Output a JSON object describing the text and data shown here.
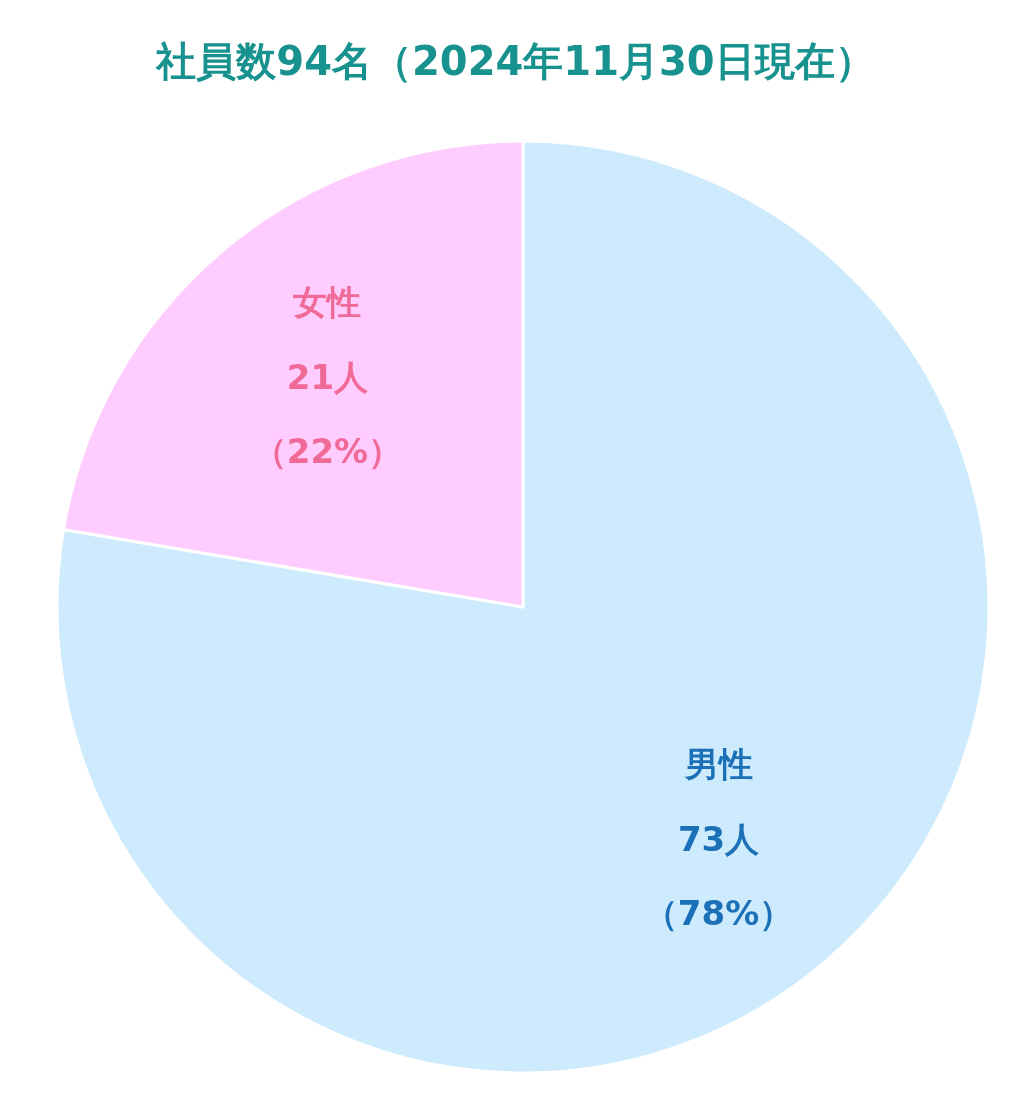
{
  "chart_data": {
    "type": "pie",
    "title": "社員数94名（2024年11月30日現在）",
    "categories": [
      "男性",
      "女性"
    ],
    "values": [
      73,
      21
    ],
    "colors": [
      "#cdebfc",
      "#ffccff"
    ],
    "value_labels": [
      "73人（78%）",
      "21人（22%）"
    ]
  }
}
